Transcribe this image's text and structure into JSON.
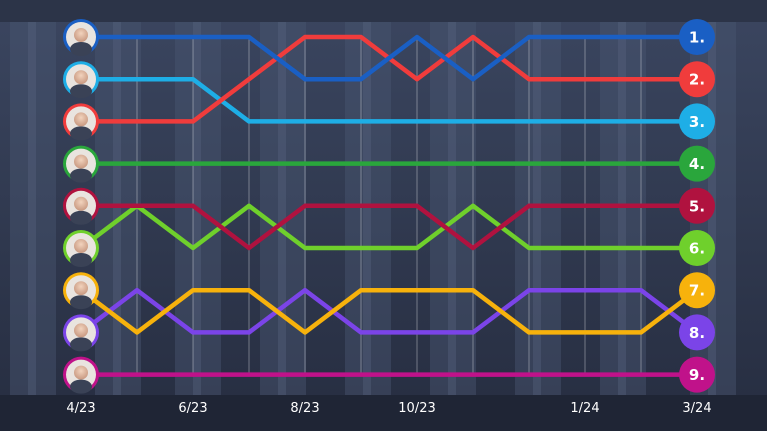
{
  "chart_data": {
    "type": "line",
    "x": [
      "4/23",
      "5/23",
      "6/23",
      "7/23",
      "8/23",
      "9/23",
      "10/23",
      "11/23",
      "12/23",
      "1/24",
      "2/24",
      "3/24"
    ],
    "x_tick_labels": [
      "4/23",
      "6/23",
      "8/23",
      "10/23",
      "1/24",
      "3/24"
    ],
    "rank_labels": [
      "1.",
      "2.",
      "3.",
      "4.",
      "5.",
      "6.",
      "7.",
      "8.",
      "9."
    ],
    "y_inverted": true,
    "ylim": [
      1,
      9
    ],
    "grid": true,
    "series": [
      {
        "color": "#1a5fc4",
        "values": [
          1,
          1,
          1,
          1,
          2,
          2,
          1,
          2,
          1,
          1,
          1,
          1
        ]
      },
      {
        "color": "#f03c3c",
        "values": [
          3,
          3,
          3,
          2,
          1,
          1,
          2,
          1,
          2,
          2,
          2,
          2
        ]
      },
      {
        "color": "#1eaee6",
        "values": [
          2,
          2,
          2,
          3,
          3,
          3,
          3,
          3,
          3,
          3,
          3,
          3
        ]
      },
      {
        "color": "#2aa63c",
        "values": [
          4,
          4,
          4,
          4,
          4,
          4,
          4,
          4,
          4,
          4,
          4,
          4
        ]
      },
      {
        "color": "#b0123f",
        "values": [
          5,
          5,
          5,
          6,
          5,
          5,
          5,
          6,
          5,
          5,
          5,
          5
        ]
      },
      {
        "color": "#6fd02c",
        "values": [
          6,
          5,
          6,
          5,
          6,
          6,
          6,
          5,
          6,
          6,
          6,
          6
        ]
      },
      {
        "color": "#f7b20c",
        "values": [
          7,
          8,
          7,
          7,
          8,
          7,
          7,
          7,
          8,
          8,
          8,
          7
        ]
      },
      {
        "color": "#7b44e8",
        "values": [
          8,
          7,
          8,
          8,
          7,
          8,
          8,
          8,
          7,
          7,
          7,
          8
        ]
      },
      {
        "color": "#c0128a",
        "values": [
          9,
          9,
          9,
          9,
          9,
          9,
          9,
          9,
          9,
          9,
          9,
          9
        ]
      }
    ]
  }
}
